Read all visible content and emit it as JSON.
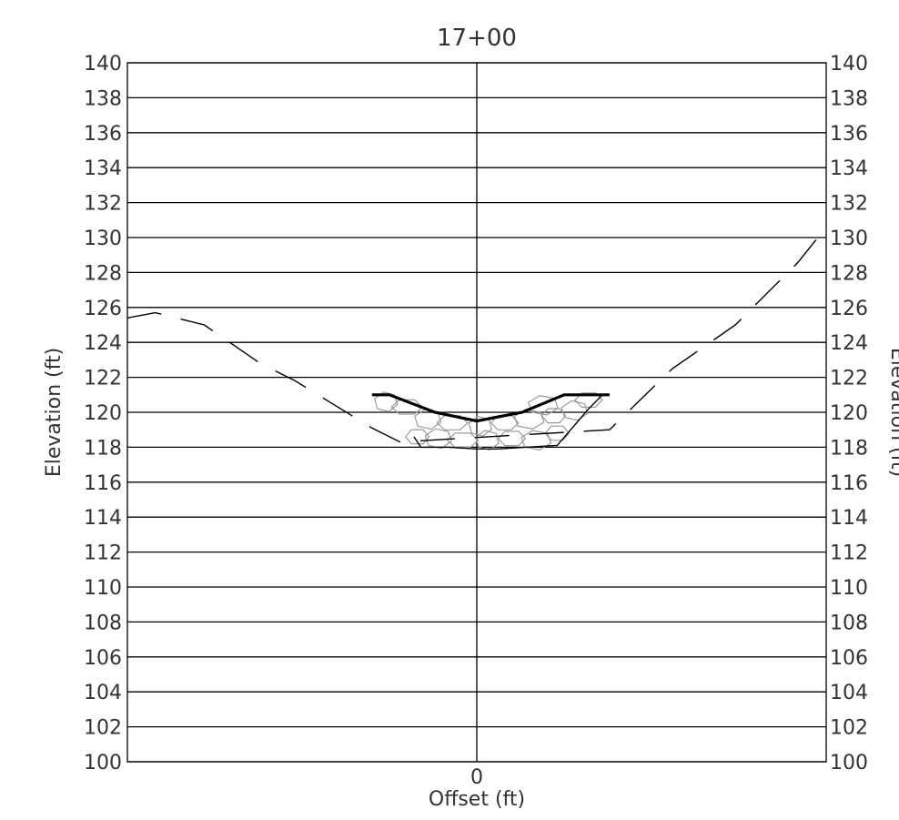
{
  "chart_data": {
    "type": "line",
    "title": "17+00",
    "xlabel": "Offset (ft)",
    "ylabel": "Elevation (ft)",
    "ylabel_right": "Elevation (ft)",
    "xlim": [
      -50,
      50
    ],
    "ylim": [
      100,
      140
    ],
    "y_ticks": [
      100,
      102,
      104,
      106,
      108,
      110,
      112,
      114,
      116,
      118,
      120,
      122,
      124,
      126,
      128,
      130,
      132,
      134,
      136,
      138,
      140
    ],
    "x_ticks": [
      0
    ],
    "x_tick_labels": [
      "0"
    ],
    "grid": true,
    "series": [
      {
        "style": "dashed",
        "color": "#000000",
        "points": [
          [
            -50,
            125.4
          ],
          [
            -46,
            125.7
          ],
          [
            -39,
            125.0
          ],
          [
            -31,
            122.8
          ],
          [
            -26,
            121.8
          ],
          [
            -15,
            119.1
          ],
          [
            -11,
            118.3
          ],
          [
            19,
            119.0
          ],
          [
            28,
            122.5
          ],
          [
            37,
            125.0
          ],
          [
            46,
            128.6
          ],
          [
            50,
            130.6
          ]
        ]
      },
      {
        "style": "solid-bold",
        "color": "#000000",
        "points": [
          [
            -15,
            121.0
          ],
          [
            -12.5,
            121.0
          ],
          [
            -6,
            120.0
          ],
          [
            0,
            119.5
          ],
          [
            6.5,
            120.0
          ],
          [
            12.5,
            121.0
          ],
          [
            19,
            121.0
          ]
        ]
      },
      {
        "style": "solid-thin",
        "color": "#000000",
        "points": [
          [
            -9,
            118.6
          ],
          [
            -8,
            118.0
          ],
          [
            -4,
            118.0
          ],
          [
            0,
            117.9
          ],
          [
            3,
            117.9
          ],
          [
            7,
            118.0
          ],
          [
            11.5,
            118.1
          ],
          [
            16,
            120.2
          ],
          [
            18,
            121.0
          ]
        ]
      }
    ],
    "riprap": {
      "color": "#9a9a9a",
      "stones": [
        [
          -8.5,
          118.6
        ],
        [
          -5.5,
          118.5
        ],
        [
          -2,
          118.4
        ],
        [
          1.5,
          118.4
        ],
        [
          5,
          118.5
        ],
        [
          8.5,
          118.4
        ],
        [
          11.5,
          118.8
        ],
        [
          -7,
          119.6
        ],
        [
          -3.5,
          119.4
        ],
        [
          0.5,
          119.2
        ],
        [
          4,
          119.4
        ],
        [
          7.5,
          119.6
        ],
        [
          11,
          119.8
        ],
        [
          14,
          120.1
        ],
        [
          -10,
          120.3
        ],
        [
          -13,
          120.6
        ],
        [
          16,
          120.7
        ],
        [
          9.5,
          120.4
        ]
      ]
    }
  }
}
